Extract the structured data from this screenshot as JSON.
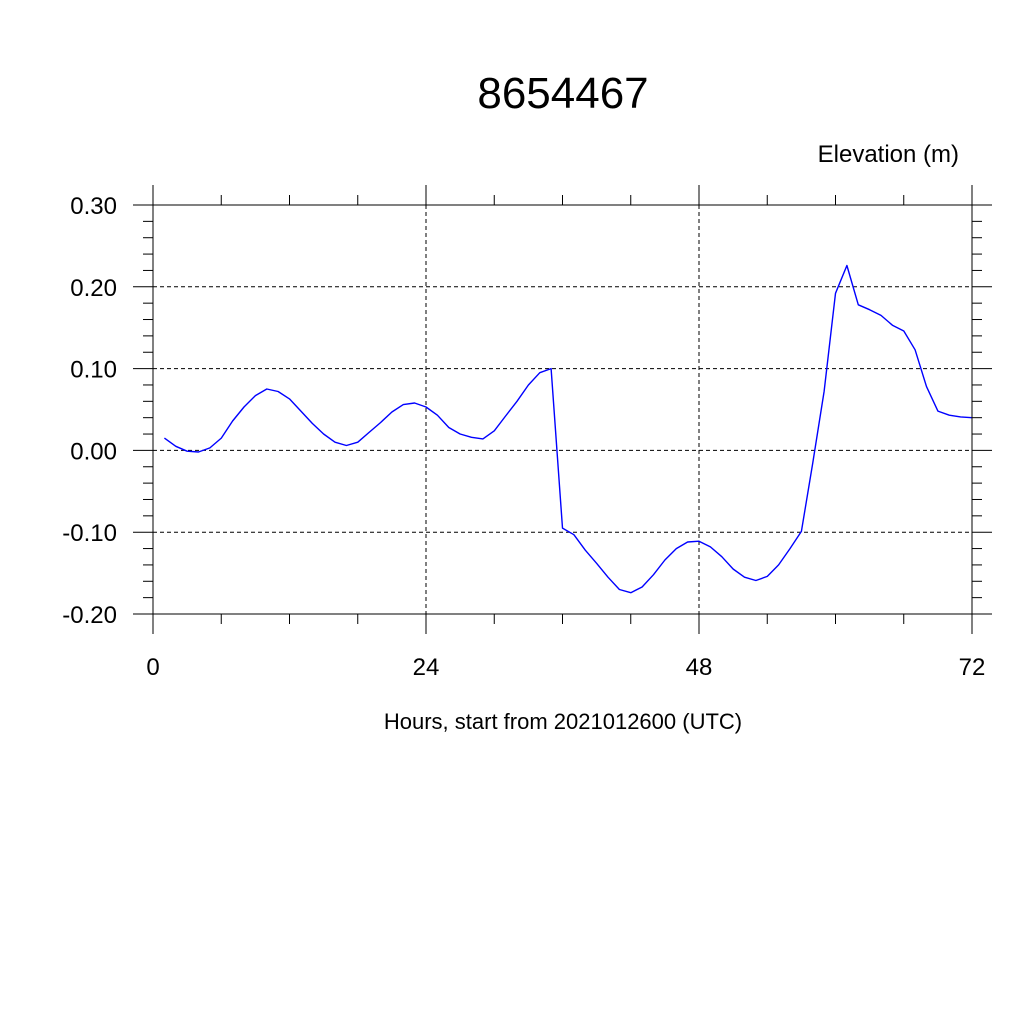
{
  "chart_data": {
    "type": "line",
    "title": "8654467",
    "ylabel": "Elevation (m)",
    "xlabel": "Hours, start from 2021012600 (UTC)",
    "xlim": [
      0,
      72
    ],
    "ylim": [
      -0.2,
      0.3
    ],
    "x_ticks": [
      0,
      24,
      48,
      72
    ],
    "x_tick_labels": [
      "0",
      "24",
      "48",
      "72"
    ],
    "y_ticks": [
      -0.2,
      -0.1,
      0.0,
      0.1,
      0.2,
      0.3
    ],
    "y_tick_labels": [
      "-0.20",
      "-0.10",
      "0.00",
      "0.10",
      "0.20",
      "0.30"
    ],
    "grid": true,
    "series": [
      {
        "color": "#0000ff",
        "x": [
          1,
          2,
          3,
          4,
          5,
          6,
          7,
          8,
          9,
          10,
          11,
          12,
          13,
          14,
          15,
          16,
          17,
          18,
          19,
          20,
          21,
          22,
          23,
          24,
          25,
          26,
          27,
          28,
          29,
          30,
          31,
          32,
          33,
          34,
          35,
          36,
          37,
          38,
          39,
          40,
          41,
          42,
          43,
          44,
          45,
          46,
          47,
          48,
          49,
          50,
          51,
          52,
          53,
          54,
          55,
          56,
          57,
          58,
          59,
          60,
          61,
          62,
          63,
          64,
          65,
          66,
          67,
          68,
          69,
          70,
          71,
          72
        ],
        "values": [
          0.015,
          0.005,
          -0.001,
          -0.002,
          0.003,
          0.015,
          0.036,
          0.053,
          0.067,
          0.075,
          0.072,
          0.063,
          0.048,
          0.033,
          0.02,
          0.01,
          0.006,
          0.01,
          0.022,
          0.034,
          0.047,
          0.056,
          0.058,
          0.053,
          0.043,
          0.028,
          0.02,
          0.016,
          0.014,
          0.024,
          0.042,
          0.06,
          0.08,
          0.095,
          0.1,
          -0.095,
          -0.103,
          -0.122,
          -0.138,
          -0.155,
          -0.17,
          -0.174,
          -0.167,
          -0.152,
          -0.134,
          -0.12,
          -0.112,
          -0.111,
          -0.118,
          -0.13,
          -0.145,
          -0.155,
          -0.159,
          -0.154,
          -0.14,
          -0.12,
          -0.099,
          -0.015,
          0.072,
          0.192,
          0.226,
          0.178,
          0.172,
          0.165,
          0.153,
          0.146,
          0.123,
          0.078,
          0.048,
          0.043,
          0.041,
          0.04
        ]
      }
    ]
  }
}
